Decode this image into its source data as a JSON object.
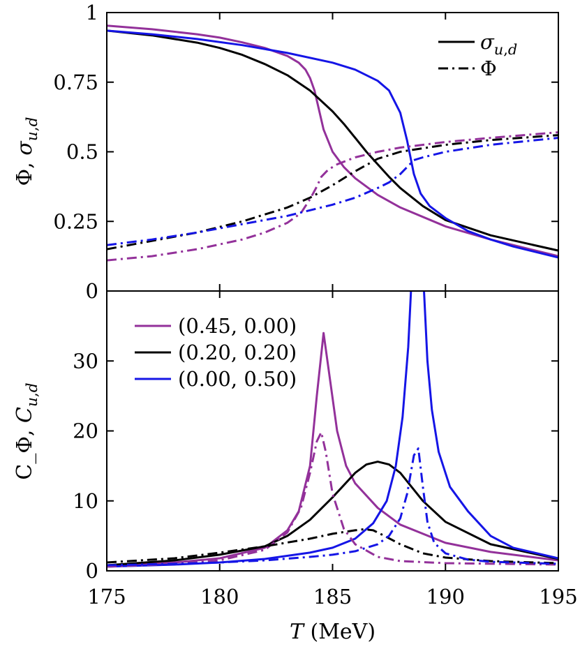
{
  "chart_data": [
    {
      "type": "line",
      "panel": "top",
      "ylabel": "Φ, σ_{u,d}",
      "xlim": [
        175,
        195
      ],
      "ylim": [
        0,
        1
      ],
      "yticks": [
        0,
        0.25,
        0.5,
        0.75,
        1
      ],
      "ytick_labels": [
        "0",
        "0.25",
        "0.5",
        "0.75",
        "1"
      ],
      "grid": false,
      "legend_placement": "top-right",
      "legend": [
        {
          "label": "σ_{u,d}",
          "style": "solid"
        },
        {
          "label": "Φ",
          "style": "dash-dot"
        }
      ],
      "series": [
        {
          "key": "sigma_purple",
          "color": "#93319a",
          "style": "solid",
          "lw": 3,
          "x": [
            175,
            177,
            179,
            180,
            181,
            182,
            183,
            183.5,
            183.8,
            184,
            184.2,
            184.4,
            184.6,
            185,
            185.5,
            186,
            187,
            188,
            190,
            192,
            195
          ],
          "y": [
            0.953,
            0.94,
            0.922,
            0.91,
            0.893,
            0.873,
            0.844,
            0.82,
            0.795,
            0.765,
            0.72,
            0.65,
            0.58,
            0.5,
            0.445,
            0.405,
            0.345,
            0.3,
            0.232,
            0.185,
            0.125
          ]
        },
        {
          "key": "sigma_black",
          "color": "#000000",
          "style": "solid",
          "lw": 3,
          "x": [
            175,
            177,
            179,
            180,
            181,
            182,
            183,
            184,
            185,
            185.5,
            186,
            186.5,
            187,
            187.5,
            188,
            189,
            190,
            192,
            195
          ],
          "y": [
            0.935,
            0.918,
            0.892,
            0.873,
            0.848,
            0.815,
            0.775,
            0.72,
            0.645,
            0.6,
            0.55,
            0.5,
            0.455,
            0.41,
            0.37,
            0.305,
            0.255,
            0.2,
            0.145
          ]
        },
        {
          "key": "sigma_blue",
          "color": "#1515e6",
          "style": "solid",
          "lw": 3,
          "x": [
            175,
            177,
            179,
            181,
            183,
            185,
            186,
            187,
            187.5,
            188,
            188.3,
            188.6,
            188.9,
            189.3,
            190,
            191,
            192,
            193,
            195
          ],
          "y": [
            0.935,
            0.922,
            0.905,
            0.883,
            0.855,
            0.82,
            0.795,
            0.755,
            0.72,
            0.64,
            0.54,
            0.42,
            0.35,
            0.305,
            0.262,
            0.215,
            0.185,
            0.16,
            0.12
          ]
        },
        {
          "key": "phi_purple",
          "color": "#93319a",
          "style": "dash-dot",
          "lw": 3,
          "x": [
            175,
            177,
            179,
            181,
            182,
            183,
            183.6,
            184,
            184.3,
            184.5,
            184.8,
            185.2,
            186,
            187,
            188,
            190,
            192,
            195
          ],
          "y": [
            0.11,
            0.125,
            0.15,
            0.185,
            0.21,
            0.245,
            0.28,
            0.33,
            0.375,
            0.41,
            0.435,
            0.455,
            0.48,
            0.5,
            0.515,
            0.535,
            0.55,
            0.57
          ]
        },
        {
          "key": "phi_black",
          "color": "#000000",
          "style": "dash-dot",
          "lw": 3,
          "x": [
            175,
            177,
            179,
            181,
            183,
            184,
            185,
            186,
            187,
            188,
            190,
            192,
            195
          ],
          "y": [
            0.15,
            0.18,
            0.21,
            0.25,
            0.3,
            0.335,
            0.38,
            0.43,
            0.475,
            0.5,
            0.525,
            0.542,
            0.56
          ]
        },
        {
          "key": "phi_blue",
          "color": "#1515e6",
          "style": "dash-dot",
          "lw": 3,
          "x": [
            175,
            177,
            179,
            181,
            183,
            184,
            185,
            186,
            187,
            187.5,
            188,
            188.3,
            188.6,
            189,
            190,
            192,
            195
          ],
          "y": [
            0.165,
            0.185,
            0.21,
            0.24,
            0.27,
            0.29,
            0.31,
            0.335,
            0.37,
            0.39,
            0.42,
            0.445,
            0.47,
            0.48,
            0.5,
            0.525,
            0.55
          ]
        }
      ]
    },
    {
      "type": "line",
      "panel": "bottom",
      "xlabel": "T (MeV)",
      "ylabel": "C_Φ, C_{u,d}",
      "xlim": [
        175,
        195
      ],
      "ylim": [
        0,
        40
      ],
      "xticks": [
        175,
        180,
        185,
        190,
        195
      ],
      "xtick_labels": [
        "175",
        "180",
        "185",
        "190",
        "195"
      ],
      "yticks": [
        0,
        10,
        20,
        30
      ],
      "ytick_labels": [
        "0",
        "10",
        "20",
        "30"
      ],
      "grid": false,
      "legend_placement": "top-left",
      "legend": [
        {
          "label": "(0.45, 0.00)",
          "color": "#93319a"
        },
        {
          "label": "(0.20, 0.20)",
          "color": "#000000"
        },
        {
          "label": "(0.00, 0.50)",
          "color": "#1515e6"
        }
      ],
      "series": [
        {
          "key": "csigma_purple",
          "color": "#93319a",
          "style": "solid",
          "lw": 3,
          "x": [
            175,
            178,
            180,
            182,
            183,
            183.5,
            184,
            184.3,
            184.6,
            184.9,
            185.2,
            185.6,
            186,
            187,
            188,
            190,
            192,
            195
          ],
          "y": [
            0.8,
            1.2,
            1.8,
            3.3,
            5.8,
            8.5,
            15,
            25,
            34,
            27,
            20,
            15,
            12.5,
            9,
            6.6,
            4,
            2.7,
            1.5
          ]
        },
        {
          "key": "csigma_black",
          "color": "#000000",
          "style": "solid",
          "lw": 3,
          "x": [
            175,
            178,
            180,
            182,
            183,
            184,
            185,
            186,
            186.5,
            187,
            187.5,
            188,
            189,
            190,
            192,
            195
          ],
          "y": [
            0.8,
            1.5,
            2.3,
            3.5,
            5,
            7.3,
            10.5,
            14,
            15.2,
            15.6,
            15.2,
            14,
            10,
            7,
            3.8,
            1.7
          ]
        },
        {
          "key": "csigma_blue",
          "color": "#1515e6",
          "style": "solid",
          "lw": 3,
          "x": [
            175,
            178,
            180,
            182,
            184,
            185,
            186,
            186.8,
            187.4,
            187.8,
            188.1,
            188.35,
            188.55,
            188.75,
            188.9,
            189.05,
            189.2,
            189.4,
            189.7,
            190.2,
            191,
            192,
            193,
            195
          ],
          "y": [
            0.6,
            0.9,
            1.2,
            1.7,
            2.6,
            3.3,
            4.6,
            6.8,
            10,
            15,
            22,
            32,
            45,
            60,
            50,
            40,
            30,
            23,
            17,
            12,
            8.5,
            5,
            3.3,
            1.8
          ]
        },
        {
          "key": "cphi_purple",
          "color": "#93319a",
          "style": "dash-dot",
          "lw": 3,
          "x": [
            175,
            178,
            180,
            182,
            183,
            183.6,
            184,
            184.3,
            184.5,
            184.7,
            185,
            185.5,
            186,
            187,
            188,
            190,
            195
          ],
          "y": [
            0.6,
            1,
            1.5,
            3,
            5.5,
            9,
            14,
            18.5,
            19.8,
            17,
            11,
            6,
            3.8,
            2,
            1.4,
            1.1,
            0.9
          ]
        },
        {
          "key": "cphi_black",
          "color": "#000000",
          "style": "dash-dot",
          "lw": 3,
          "x": [
            175,
            178,
            180,
            182,
            184,
            185,
            186,
            186.4,
            186.8,
            187.3,
            188,
            189,
            190,
            192,
            195
          ],
          "y": [
            1.2,
            1.8,
            2.6,
            3.5,
            4.6,
            5.3,
            5.8,
            5.95,
            5.8,
            5,
            3.8,
            2.5,
            1.9,
            1.4,
            1.1
          ]
        },
        {
          "key": "cphi_blue",
          "color": "#1515e6",
          "style": "dash-dot",
          "lw": 3,
          "x": [
            175,
            178,
            180,
            182,
            184,
            185,
            186,
            187,
            187.5,
            188,
            188.3,
            188.6,
            188.8,
            189,
            189.2,
            189.5,
            190,
            191,
            192,
            195
          ],
          "y": [
            0.8,
            1,
            1.2,
            1.5,
            2,
            2.3,
            2.8,
            3.8,
            5,
            7.5,
            11,
            16.5,
            17.5,
            12,
            7,
            4,
            2.5,
            1.6,
            1.3,
            1
          ]
        }
      ]
    }
  ]
}
